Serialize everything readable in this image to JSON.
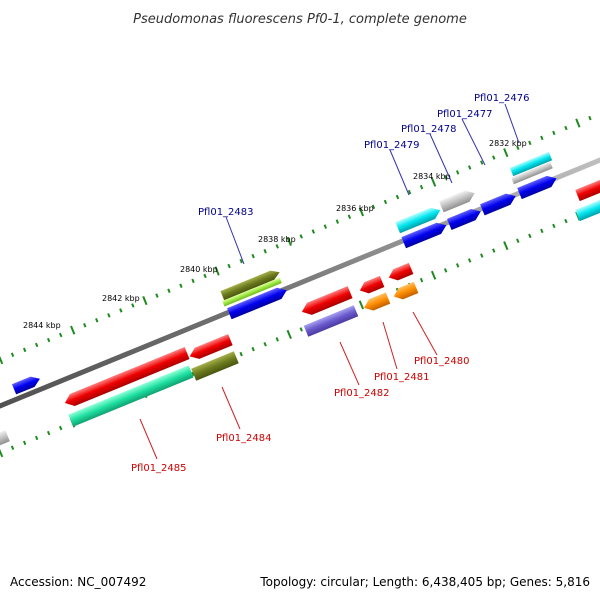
{
  "header": {
    "title": "Pseudomonas fluorescens Pf0-1, complete genome"
  },
  "footer": {
    "accession": "Accession: NC_007492",
    "summary": "Topology: circular; Length: 6,438,405 bp; Genes: 5,816"
  },
  "colors": {
    "backbone": "#808080",
    "tick": "#1f8a1f",
    "label_forward": "#00008b",
    "label_reverse": "#cc0000",
    "leader_forward": "#3333aa",
    "leader_reverse": "#cc2222"
  },
  "ticks": [
    {
      "label": "2832 kbp"
    },
    {
      "label": "2834 kbp"
    },
    {
      "label": "2836 kbp"
    },
    {
      "label": "2838 kbp"
    },
    {
      "label": "2840 kbp"
    },
    {
      "label": "2842 kbp"
    },
    {
      "label": "2844 kbp"
    }
  ],
  "genes_forward": [
    {
      "label": "Pfl01_2476"
    },
    {
      "label": "Pfl01_2477"
    },
    {
      "label": "Pfl01_2478"
    },
    {
      "label": "Pfl01_2479"
    },
    {
      "label": "Pfl01_2483"
    }
  ],
  "genes_reverse": [
    {
      "label": "Pfl01_2480"
    },
    {
      "label": "Pfl01_2481"
    },
    {
      "label": "Pfl01_2482"
    },
    {
      "label": "Pfl01_2484"
    },
    {
      "label": "Pfl01_2485"
    }
  ]
}
